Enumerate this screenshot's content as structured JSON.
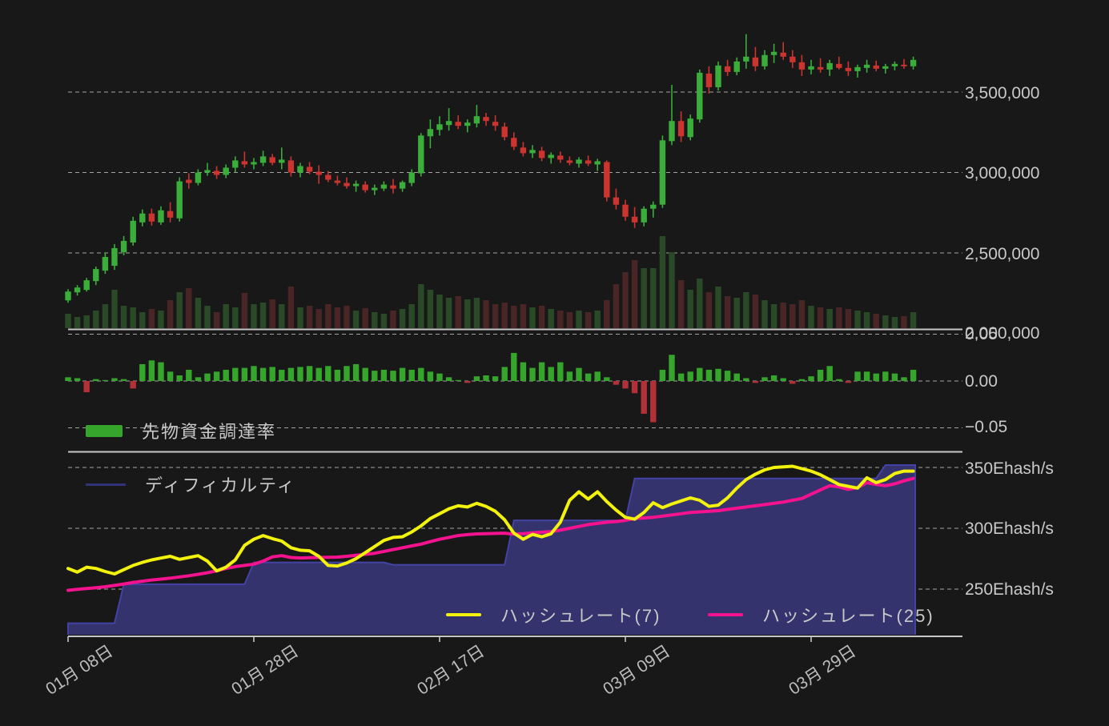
{
  "colors": {
    "background": "#181818",
    "candle_up": "#3aad3a",
    "candle_down": "#cc3430",
    "volume_up": "#2a4a27",
    "volume_down": "#4a2525",
    "funding_up": "#35a52c",
    "funding_down": "#b23139",
    "difficulty_fill": "#34336d",
    "difficulty_edge": "#4343a5",
    "hashrate7_line": "#f2f20c",
    "hashrate25_line": "#f5128f",
    "grid_line": "#c6c6c6",
    "axis_text": "#c9c9c9"
  },
  "legends": {
    "funding": "先物資金調達率",
    "difficulty": "ディフィカルティ",
    "hashrate7": "ハッシュレート(7)",
    "hashrate25": "ハッシュレート(25)"
  },
  "axis": {
    "price_labels": [
      "3,500,000",
      "3,000,000",
      "2,500,000",
      "2,000,000"
    ],
    "funding_labels": [
      "0.05",
      "0.00",
      "−0.05"
    ],
    "hashrate_labels": [
      "350Ehash/s",
      "300Ehash/s",
      "250Ehash/s"
    ],
    "date_labels": [
      "01月 08日",
      "01月 28日",
      "02月 17日",
      "03月 09日",
      "03月 29日"
    ]
  },
  "chart_data": {
    "type": "candlestick",
    "n_points": 92,
    "x_axis": {
      "tick_labels": [
        "01月 08日",
        "01月 28日",
        "02月 17日",
        "03月 09日",
        "03月 29日"
      ],
      "tick_indices": [
        0,
        20,
        40,
        60,
        80
      ]
    },
    "price_panel": {
      "type": "candlestick+volume",
      "unit": "JPY (millions)",
      "y_ticks": [
        3500000,
        3000000,
        2500000,
        2000000
      ],
      "open": [
        2.205,
        2.255,
        2.27,
        2.325,
        2.39,
        2.42,
        2.505,
        2.565,
        2.69,
        2.745,
        2.69,
        2.76,
        2.715,
        2.955,
        2.935,
        3.0,
        3.01,
        2.985,
        3.03,
        3.07,
        3.05,
        3.06,
        3.095,
        3.06,
        3.075,
        3.0,
        3.035,
        3.005,
        2.985,
        2.95,
        2.935,
        2.915,
        2.925,
        2.89,
        2.9,
        2.92,
        2.9,
        2.935,
        2.995,
        3.225,
        3.265,
        3.295,
        3.315,
        3.29,
        3.305,
        3.345,
        3.315,
        3.285,
        3.215,
        3.155,
        3.12,
        3.135,
        3.09,
        3.105,
        3.075,
        3.055,
        3.075,
        3.05,
        3.065,
        2.845,
        2.8,
        2.725,
        2.69,
        2.775,
        2.8,
        3.195,
        3.32,
        3.22,
        3.33,
        3.615,
        3.53,
        3.66,
        3.625,
        3.69,
        3.715,
        3.66,
        3.73,
        3.745,
        3.72,
        3.685,
        3.64,
        3.655,
        3.64,
        3.675,
        3.65,
        3.63,
        3.65,
        3.665,
        3.645,
        3.66,
        3.67,
        3.66
      ],
      "high": [
        2.275,
        2.3,
        2.345,
        2.415,
        2.5,
        2.555,
        2.605,
        2.725,
        2.77,
        2.775,
        2.79,
        2.815,
        2.97,
        2.995,
        3.02,
        3.06,
        3.04,
        3.05,
        3.1,
        3.13,
        3.09,
        3.135,
        3.115,
        3.155,
        3.1,
        3.06,
        3.065,
        3.045,
        3.01,
        2.98,
        2.97,
        2.95,
        2.945,
        2.925,
        2.945,
        2.96,
        2.95,
        3.02,
        3.245,
        3.33,
        3.35,
        3.4,
        3.355,
        3.33,
        3.42,
        3.37,
        3.355,
        3.31,
        3.25,
        3.19,
        3.17,
        3.16,
        3.125,
        3.13,
        3.1,
        3.095,
        3.105,
        3.085,
        3.075,
        2.9,
        2.83,
        2.785,
        2.79,
        2.82,
        3.23,
        3.545,
        3.38,
        3.36,
        3.64,
        3.66,
        3.69,
        3.7,
        3.715,
        3.86,
        3.78,
        3.76,
        3.8,
        3.81,
        3.76,
        3.73,
        3.7,
        3.71,
        3.7,
        3.72,
        3.69,
        3.67,
        3.7,
        3.695,
        3.675,
        3.69,
        3.705,
        3.72
      ],
      "low": [
        2.19,
        2.235,
        2.26,
        2.3,
        2.37,
        2.395,
        2.485,
        2.545,
        2.665,
        2.67,
        2.675,
        2.69,
        2.695,
        2.9,
        2.92,
        2.98,
        2.96,
        2.965,
        3.0,
        3.03,
        3.02,
        3.04,
        3.045,
        3.02,
        2.975,
        2.97,
        2.99,
        2.93,
        2.94,
        2.92,
        2.9,
        2.88,
        2.875,
        2.86,
        2.885,
        2.87,
        2.88,
        2.915,
        2.975,
        3.15,
        3.23,
        3.26,
        3.27,
        3.25,
        3.28,
        3.29,
        3.26,
        3.2,
        3.14,
        3.1,
        3.09,
        3.07,
        3.055,
        3.06,
        3.045,
        3.03,
        3.04,
        3.01,
        2.82,
        2.77,
        2.7,
        2.655,
        2.665,
        2.72,
        2.78,
        3.17,
        3.19,
        3.2,
        3.31,
        3.49,
        3.51,
        3.6,
        3.605,
        3.645,
        3.63,
        3.64,
        3.68,
        3.7,
        3.65,
        3.6,
        3.61,
        3.62,
        3.6,
        3.64,
        3.6,
        3.59,
        3.62,
        3.63,
        3.615,
        3.635,
        3.645,
        3.64
      ],
      "close": [
        2.26,
        2.285,
        2.33,
        2.4,
        2.475,
        2.53,
        2.575,
        2.7,
        2.745,
        2.695,
        2.765,
        2.72,
        2.945,
        2.935,
        3.0,
        3.015,
        2.985,
        3.03,
        3.075,
        3.05,
        3.065,
        3.1,
        3.06,
        3.08,
        3.0,
        3.04,
        3.005,
        2.985,
        2.955,
        2.935,
        2.915,
        2.93,
        2.89,
        2.905,
        2.925,
        2.9,
        2.94,
        3.0,
        3.23,
        3.27,
        3.3,
        3.32,
        3.29,
        3.31,
        3.35,
        3.32,
        3.29,
        3.22,
        3.16,
        3.12,
        3.14,
        3.09,
        3.11,
        3.08,
        3.06,
        3.08,
        3.055,
        3.07,
        2.845,
        2.8,
        2.725,
        2.69,
        2.775,
        2.8,
        3.2,
        3.32,
        3.225,
        3.335,
        3.62,
        3.53,
        3.665,
        3.625,
        3.69,
        3.72,
        3.66,
        3.73,
        3.75,
        3.72,
        3.685,
        3.64,
        3.66,
        3.64,
        3.68,
        3.65,
        3.63,
        3.655,
        3.67,
        3.645,
        3.66,
        3.675,
        3.66,
        3.7
      ],
      "volume_rel": [
        18,
        14,
        16,
        22,
        30,
        48,
        28,
        26,
        20,
        24,
        22,
        35,
        45,
        50,
        38,
        28,
        20,
        30,
        26,
        44,
        30,
        32,
        36,
        30,
        52,
        26,
        28,
        24,
        30,
        26,
        28,
        22,
        25,
        20,
        18,
        22,
        24,
        30,
        55,
        48,
        42,
        38,
        40,
        36,
        38,
        35,
        30,
        32,
        28,
        30,
        26,
        28,
        24,
        22,
        20,
        22,
        20,
        22,
        35,
        55,
        70,
        85,
        75,
        75,
        115,
        95,
        60,
        48,
        62,
        45,
        52,
        40,
        38,
        45,
        42,
        35,
        30,
        32,
        30,
        35,
        28,
        26,
        24,
        26,
        24,
        22,
        20,
        18,
        16,
        14,
        15,
        20
      ]
    },
    "funding_panel": {
      "type": "bar",
      "name": "先物資金調達率",
      "y_ticks": [
        0.05,
        0.0,
        -0.05
      ],
      "values": [
        0.004,
        0.003,
        -0.012,
        0.002,
        0.001,
        0.003,
        0.002,
        -0.008,
        0.018,
        0.022,
        0.02,
        0.01,
        0.006,
        0.012,
        0.004,
        0.008,
        0.01,
        0.012,
        0.014,
        0.014,
        0.016,
        0.014,
        0.015,
        0.012,
        0.014,
        0.015,
        0.016,
        0.014,
        0.016,
        0.012,
        0.016,
        0.018,
        0.014,
        0.011,
        0.012,
        0.011,
        0.014,
        0.012,
        0.014,
        0.01,
        0.008,
        0.004,
        0.001,
        -0.002,
        0.005,
        0.006,
        0.005,
        0.015,
        0.03,
        0.02,
        0.014,
        0.02,
        0.015,
        0.02,
        0.01,
        0.014,
        0.008,
        0.01,
        0.004,
        -0.004,
        -0.008,
        -0.013,
        -0.035,
        -0.044,
        0.012,
        0.028,
        0.008,
        0.01,
        0.014,
        0.012,
        0.013,
        0.011,
        0.008,
        0.003,
        -0.002,
        0.004,
        0.006,
        0.003,
        -0.003,
        0.002,
        0.005,
        0.012,
        0.016,
        0.002,
        -0.002,
        0.01,
        0.01,
        0.008,
        0.01,
        0.008,
        0.004,
        0.012
      ]
    },
    "hashrate_panel": {
      "type": "line+area",
      "unit": "Ehash/s",
      "y_ticks": [
        350,
        300,
        250
      ],
      "series": [
        {
          "name": "ハッシュレート(7)",
          "style": "line",
          "color": "#f2f20c",
          "values": [
            267,
            264,
            268,
            267,
            264.5,
            262.5,
            266,
            269.5,
            272,
            274,
            275.5,
            277,
            274.5,
            276,
            277.5,
            273,
            265,
            268,
            274,
            286,
            291,
            294,
            291.5,
            289.5,
            284,
            282,
            281.5,
            277,
            269.5,
            269,
            271.5,
            275,
            280,
            285,
            290,
            292.5,
            293,
            297,
            302,
            308,
            312,
            316,
            318.5,
            317.5,
            320.5,
            318,
            314,
            307,
            296,
            291,
            295,
            293,
            295.5,
            305,
            323,
            330,
            324,
            330,
            322,
            315,
            309,
            307.5,
            313,
            321,
            317,
            320,
            322.5,
            325,
            323,
            318,
            319,
            325,
            333,
            340,
            344.5,
            348,
            350,
            350.5,
            351,
            349,
            347,
            344,
            340,
            336,
            334.5,
            333,
            341.5,
            337.5,
            340,
            345,
            347,
            347
          ]
        },
        {
          "name": "ハッシュレート(25)",
          "style": "line",
          "color": "#f5128f",
          "values": [
            249,
            249.8,
            250.5,
            251.2,
            252,
            253,
            254.2,
            255.5,
            256.5,
            257.5,
            258.2,
            259,
            260,
            261,
            262.2,
            263.5,
            265,
            267,
            268.5,
            269.5,
            270.5,
            273,
            276.5,
            277.5,
            276,
            275.6,
            275.8,
            276,
            276.2,
            276.3,
            277,
            277.8,
            278.6,
            279.5,
            281,
            282.5,
            284,
            285.5,
            287,
            289,
            291,
            292.5,
            294,
            294.8,
            295.4,
            295.6,
            295.8,
            296,
            295.2,
            295.5,
            296.3,
            296.8,
            297.3,
            298.5,
            300,
            301.5,
            303,
            304,
            305,
            305.5,
            306.5,
            308,
            308.5,
            309,
            310,
            311,
            312,
            313,
            313.5,
            314,
            314.5,
            315.5,
            316.5,
            317.5,
            318.5,
            319.5,
            320.5,
            321.5,
            323,
            324.5,
            328,
            331.5,
            335,
            334,
            332,
            333.5,
            337.5,
            336,
            335,
            336.5,
            339,
            341
          ]
        },
        {
          "name": "ディフィカルティ",
          "style": "step-area",
          "color": "#34336d",
          "values": [
            222,
            222,
            222,
            222,
            222,
            222,
            254,
            254,
            254,
            254,
            254,
            254,
            254,
            254,
            254,
            254,
            254,
            254,
            254,
            254,
            272,
            272,
            272,
            272,
            272,
            272,
            272,
            272,
            272,
            272,
            272,
            272,
            272,
            272,
            272,
            270,
            270,
            270,
            270,
            270,
            270,
            270,
            270,
            270,
            270,
            270,
            270,
            270,
            306.5,
            306.5,
            306.5,
            306.5,
            306.5,
            306.5,
            306.5,
            306.5,
            306.5,
            306.5,
            306.5,
            306.5,
            306.5,
            341,
            341,
            341,
            341,
            341,
            341,
            341,
            341,
            341,
            341,
            341,
            341,
            341,
            341,
            341,
            341,
            341,
            341,
            341,
            341,
            341,
            341,
            341,
            341,
            341,
            341,
            341,
            352,
            352,
            352,
            352
          ]
        }
      ]
    }
  }
}
